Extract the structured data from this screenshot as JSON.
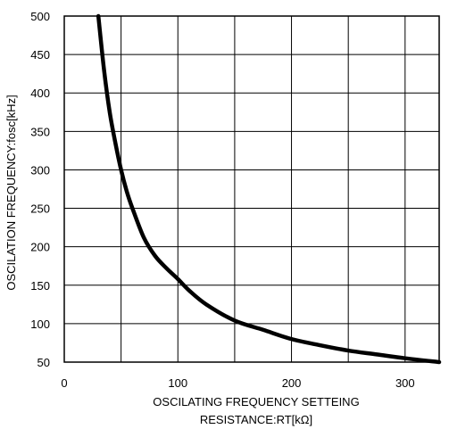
{
  "chart_data": {
    "type": "line",
    "xlabel_lines": [
      "OSCILATING FREQUENCY SETTEING",
      "RESISTANCE:RT[kΩ]"
    ],
    "ylabel": "OSCILATION FREQUENCY:fosc[kHz]",
    "xlim": [
      0,
      330
    ],
    "ylim": [
      50,
      500
    ],
    "x_ticks": [
      0,
      100,
      200,
      300
    ],
    "y_ticks": [
      50,
      100,
      150,
      200,
      250,
      300,
      350,
      400,
      450,
      500
    ],
    "x_grid": [
      0,
      50,
      100,
      150,
      200,
      250,
      300
    ],
    "grid": true,
    "series": [
      {
        "x": [
          30,
          35,
          40,
          45,
          50,
          55,
          60,
          70,
          80,
          90,
          100,
          110,
          125,
          150,
          175,
          200,
          225,
          250,
          275,
          300,
          330
        ],
        "y": [
          500,
          430,
          375,
          335,
          300,
          272,
          250,
          212,
          188,
          172,
          158,
          143,
          125,
          104,
          92,
          80,
          72,
          65,
          60,
          55,
          50
        ],
        "color": "#000000"
      }
    ]
  }
}
